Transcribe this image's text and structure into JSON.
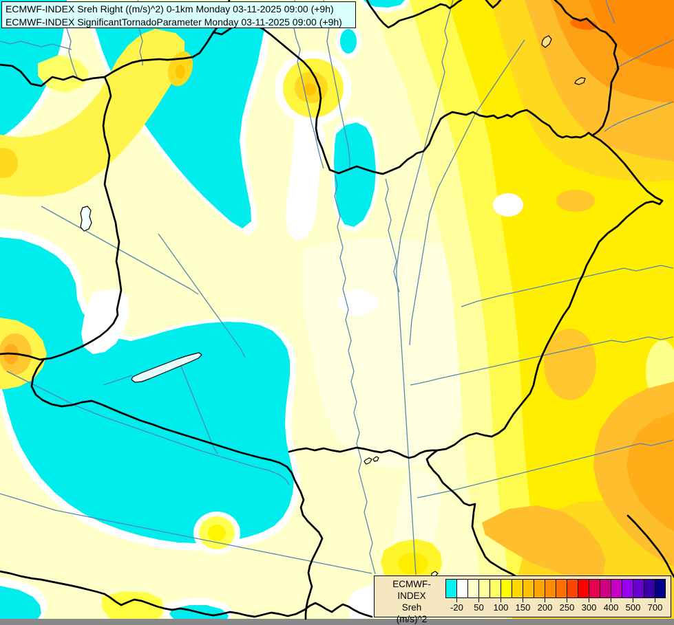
{
  "header": {
    "line1": "ECMWF-INDEX Sreh Right ((m/s)^2) 0-1km Monday 03-11-2025 09:00 (+9h)",
    "line2": "ECMWF-INDEX SignificantTornadoParameter Monday 03-11-2025 09:00 (+9h)"
  },
  "legend": {
    "model": "ECMWF-INDEX",
    "parameter": "Sreh",
    "unit": "(m/s)^2",
    "ticks": [
      "-20",
      "50",
      "100",
      "150",
      "200",
      "250",
      "300",
      "400",
      "500",
      "700"
    ],
    "cell_colors": [
      "#00F2F2",
      "#FFFFFF",
      "#FFFFCC",
      "#FFFF99",
      "#FFFF66",
      "#FFFF00",
      "#FFD700",
      "#FFC000",
      "#FFA500",
      "#FF8C00",
      "#FF7000",
      "#FF4500",
      "#FF0000",
      "#E80050",
      "#D10080",
      "#C400C4",
      "#9900F0",
      "#6A00D0",
      "#3A00A8",
      "#000088"
    ]
  },
  "map": {
    "region": "Central Europe (Hungary and neighbours)",
    "colors": {
      "negative_cyan": "#00EDED",
      "zero_white": "#FFFFFF",
      "pale_yellow": "#FFFFC9",
      "cream": "#FFFFE0",
      "yellow": "#FFF54A",
      "bright_yellow": "#FFEE00",
      "gold": "#FFD91E",
      "amber": "#FFBE2D",
      "orange": "#FFA114",
      "deep_orange": "#FF8C05",
      "red_orange": "#FF6F00",
      "border_line": "#000000",
      "river_line": "#5585B5",
      "lake_fill": "#E6FBFB",
      "title_bg": "#D9FFFF",
      "legend_bg": "#F5E8C0"
    }
  },
  "chart_data": {
    "type": "heatmap",
    "title": "ECMWF-INDEX Sreh Right ((m/s)^2) 0-1km",
    "valid_time": "Monday 03-11-2025 09:00 (+9h)",
    "scale_ticks": [
      -20,
      50,
      100,
      150,
      200,
      250,
      300,
      400,
      500,
      700
    ],
    "scale_unit": "(m/s)^2",
    "legend_position": "bottom-right"
  }
}
